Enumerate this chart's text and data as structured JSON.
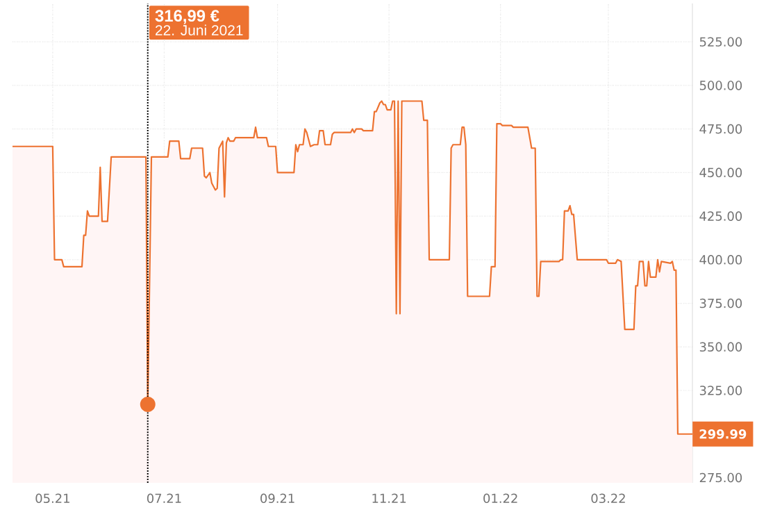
{
  "chart_data": {
    "type": "area",
    "x": [
      "2021-04-09",
      "2021-05-01",
      "2021-05-02",
      "2021-05-06",
      "2021-05-07",
      "2021-05-17",
      "2021-05-18",
      "2021-05-19",
      "2021-05-20",
      "2021-05-21",
      "2021-05-26",
      "2021-05-27",
      "2021-05-28",
      "2021-05-31",
      "2021-06-02",
      "2021-06-21",
      "2021-06-22",
      "2021-06-24",
      "2021-07-03",
      "2021-07-04",
      "2021-07-09",
      "2021-07-10",
      "2021-07-15",
      "2021-07-16",
      "2021-07-22",
      "2021-07-23",
      "2021-07-24",
      "2021-07-26",
      "2021-07-27",
      "2021-07-29",
      "2021-07-30",
      "2021-07-31",
      "2021-08-02",
      "2021-08-03",
      "2021-08-04",
      "2021-08-05",
      "2021-08-06",
      "2021-08-08",
      "2021-08-09",
      "2021-08-19",
      "2021-08-20",
      "2021-08-21",
      "2021-08-26",
      "2021-08-27",
      "2021-08-31",
      "2021-09-01",
      "2021-09-10",
      "2021-09-11",
      "2021-09-12",
      "2021-09-13",
      "2021-09-15",
      "2021-09-16",
      "2021-09-17",
      "2021-09-19",
      "2021-09-21",
      "2021-09-23",
      "2021-09-24",
      "2021-09-26",
      "2021-09-27",
      "2021-09-30",
      "2021-10-01",
      "2021-10-02",
      "2021-10-11",
      "2021-10-12",
      "2021-10-13",
      "2021-10-14",
      "2021-10-17",
      "2021-10-18",
      "2021-10-23",
      "2021-10-24",
      "2021-10-25",
      "2021-10-27",
      "2021-10-28",
      "2021-10-29",
      "2021-10-30",
      "2021-10-31",
      "2021-11-02",
      "2021-11-03",
      "2021-11-04",
      "2021-11-05",
      "2021-11-06",
      "2021-11-07",
      "2021-11-08",
      "2021-11-19",
      "2021-11-20",
      "2021-11-22",
      "2021-11-23",
      "2021-12-04",
      "2021-12-05",
      "2021-12-06",
      "2021-12-10",
      "2021-12-11",
      "2021-12-12",
      "2021-12-13",
      "2021-12-14",
      "2021-12-26",
      "2021-12-27",
      "2021-12-29",
      "2021-12-30",
      "2022-01-01",
      "2022-01-02",
      "2022-01-07",
      "2022-01-08",
      "2022-01-16",
      "2022-01-18",
      "2022-01-20",
      "2022-01-21",
      "2022-01-22",
      "2022-01-23",
      "2022-02-02",
      "2022-02-03",
      "2022-02-04",
      "2022-02-05",
      "2022-02-07",
      "2022-02-08",
      "2022-02-09",
      "2022-02-10",
      "2022-02-12",
      "2022-02-28",
      "2022-03-01",
      "2022-03-05",
      "2022-03-06",
      "2022-03-08",
      "2022-03-10",
      "2022-03-15",
      "2022-03-16",
      "2022-03-17",
      "2022-03-18",
      "2022-03-20",
      "2022-03-21",
      "2022-03-22",
      "2022-03-23",
      "2022-03-24",
      "2022-03-27",
      "2022-03-28",
      "2022-03-29",
      "2022-03-30",
      "2022-04-04",
      "2022-04-05",
      "2022-04-06",
      "2022-04-07",
      "2022-04-08",
      "2022-04-16"
    ],
    "values": [
      465,
      465,
      400,
      400,
      396,
      396,
      414,
      414,
      428,
      425,
      425,
      453,
      422,
      422,
      459,
      459,
      316.99,
      459,
      459,
      468,
      468,
      458,
      458,
      464,
      464,
      448,
      447,
      450,
      444,
      440,
      441,
      464,
      468,
      436,
      467,
      470,
      468,
      468,
      470,
      470,
      476,
      470,
      470,
      465,
      465,
      450,
      450,
      466,
      462,
      466,
      466,
      475,
      473,
      465,
      466,
      466,
      474,
      474,
      466,
      466,
      472,
      473,
      473,
      475,
      473,
      475,
      475,
      474,
      474,
      485,
      485,
      490,
      491,
      489,
      489,
      486,
      486,
      491,
      491,
      369,
      491,
      369,
      491,
      491,
      480,
      480,
      400,
      400,
      464,
      466,
      466,
      476,
      476,
      466,
      379,
      379,
      396,
      396,
      478,
      478,
      477,
      477,
      476,
      476,
      464,
      464,
      379,
      379,
      399,
      399,
      400,
      400,
      428,
      428,
      431,
      426,
      426,
      400,
      400,
      398,
      398,
      400,
      399,
      360,
      360,
      385,
      385,
      399,
      399,
      385,
      385,
      399,
      390,
      390,
      400,
      393,
      399,
      398,
      399,
      394,
      394,
      299.99,
      299.99
    ],
    "color": "#ed7230",
    "xlim": [
      "2021-04-09",
      "2022-04-16"
    ],
    "xticks": [
      {
        "value": "2021-05-01",
        "label": "05.21"
      },
      {
        "value": "2021-07-01",
        "label": "07.21"
      },
      {
        "value": "2021-09-01",
        "label": "09.21"
      },
      {
        "value": "2021-11-01",
        "label": "11.21"
      },
      {
        "value": "2022-01-01",
        "label": "01.22"
      },
      {
        "value": "2022-03-01",
        "label": "03.22"
      }
    ],
    "ylim": [
      272,
      547
    ],
    "yticks": [
      {
        "value": 275,
        "label": "275.00"
      },
      {
        "value": 300,
        "label": null
      },
      {
        "value": 325,
        "label": "325.00"
      },
      {
        "value": 350,
        "label": "350.00"
      },
      {
        "value": 375,
        "label": "375.00"
      },
      {
        "value": 400,
        "label": "400.00"
      },
      {
        "value": 425,
        "label": "425.00"
      },
      {
        "value": 450,
        "label": "450.00"
      },
      {
        "value": 475,
        "label": "475.00"
      },
      {
        "value": 500,
        "label": "500.00"
      },
      {
        "value": 525,
        "label": "525.00"
      }
    ],
    "grid": true,
    "ref_lines": [
      {
        "axis": "x",
        "value": "2021-06-22",
        "color": "#000000",
        "line_style": "dotted"
      }
    ],
    "annotations": [
      "316,99 €",
      "22. Juni 2021",
      {
        "text": "299.99",
        "x": "2022-04-16",
        "y": 299.99
      }
    ]
  }
}
